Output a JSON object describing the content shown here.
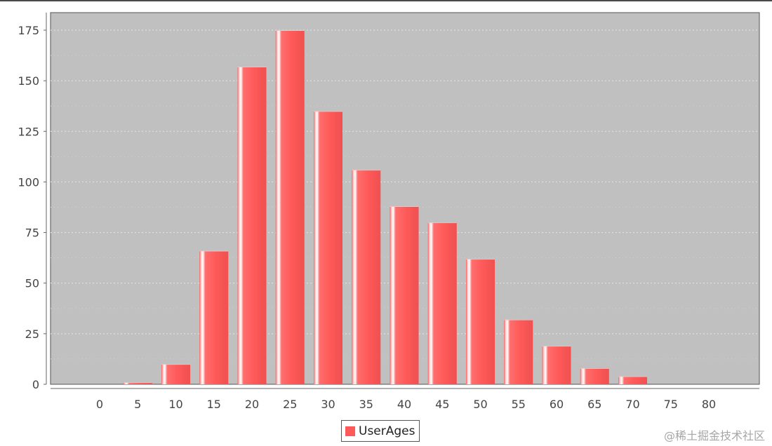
{
  "chart_data": {
    "type": "bar",
    "categories": [
      "0",
      "5",
      "10",
      "15",
      "20",
      "25",
      "30",
      "35",
      "40",
      "45",
      "50",
      "55",
      "60",
      "65",
      "70",
      "75",
      "80"
    ],
    "series": [
      {
        "name": "UserAges",
        "values": [
          0,
          1,
          10,
          66,
          157,
          175,
          135,
          106,
          88,
          80,
          62,
          32,
          19,
          8,
          4,
          0,
          0
        ]
      }
    ],
    "yticks": [
      0,
      25,
      50,
      75,
      100,
      125,
      150,
      175
    ],
    "ylim": [
      0,
      185
    ],
    "title": "",
    "xlabel": "",
    "ylabel": "",
    "grid": true,
    "legend_position": "bottom-center",
    "colors": {
      "bar": "#ff5a5a",
      "bar_highlight": "#ffd0d0",
      "plot_background": "#c0c0c0",
      "gridline": "#e4e4e4",
      "axis": "#777777"
    }
  },
  "legend": {
    "label": "UserAges"
  },
  "watermark": "@稀土掘金技术社区"
}
